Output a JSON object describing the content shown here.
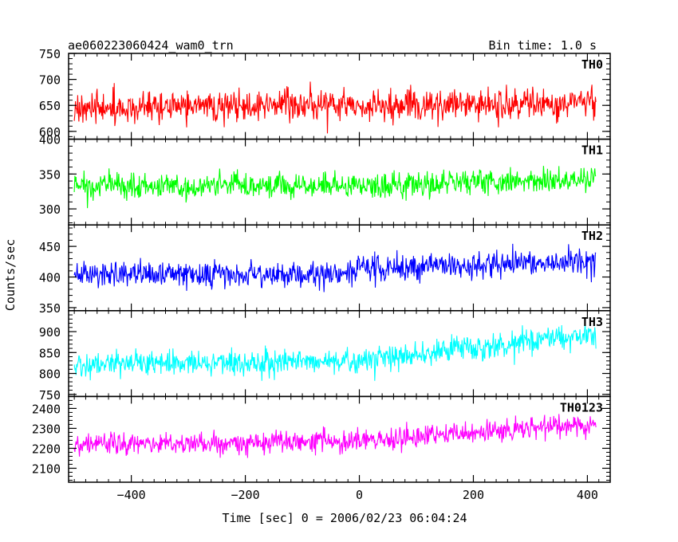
{
  "header": {
    "title": "ae060223060424_wam0_trn",
    "bin_time": "Bin time: 1.0 s"
  },
  "chart_data": {
    "type": "line",
    "xlabel": "Time [sec] 0 = 2006/02/23 06:04:24",
    "ylabel": "Counts/sec",
    "xlim": [
      -510,
      440
    ],
    "x_ticks": [
      -400,
      -200,
      0,
      200,
      400
    ],
    "x_tick_labels": [
      "−400",
      "−200",
      "0",
      "200",
      "400"
    ],
    "x_range": [
      -500,
      415
    ],
    "bin_seconds": 1.0,
    "panels": [
      {
        "name": "TH0",
        "color": "#ff0000",
        "ylim": [
          585,
          750
        ],
        "y_ticks": [
          600,
          650,
          700,
          750
        ],
        "mean": [
          [
            -500,
            645
          ],
          [
            415,
            655
          ]
        ],
        "sigma": 25
      },
      {
        "name": "TH1",
        "color": "#00ff00",
        "ylim": [
          277,
          400
        ],
        "y_ticks": [
          300,
          350,
          400
        ],
        "mean": [
          [
            -500,
            333
          ],
          [
            0,
            334
          ],
          [
            415,
            342
          ]
        ],
        "sigma": 15
      },
      {
        "name": "TH2",
        "color": "#0000ff",
        "ylim": [
          345,
          485
        ],
        "y_ticks": [
          350,
          400,
          450
        ],
        "mean": [
          [
            -500,
            404
          ],
          [
            -60,
            404
          ],
          [
            0,
            413
          ],
          [
            415,
            425
          ]
        ],
        "sigma": 18
      },
      {
        "name": "TH3",
        "color": "#00ffff",
        "ylim": [
          745,
          950
        ],
        "y_ticks": [
          750,
          800,
          850,
          900
        ],
        "mean": [
          [
            -500,
            820
          ],
          [
            0,
            830
          ],
          [
            415,
            895
          ]
        ],
        "sigma": 25
      },
      {
        "name": "TH0123",
        "color": "#ff00ff",
        "ylim": [
          2030,
          2460
        ],
        "y_ticks": [
          2100,
          2200,
          2300,
          2400
        ],
        "mean": [
          [
            -500,
            2215
          ],
          [
            0,
            2235
          ],
          [
            415,
            2320
          ]
        ],
        "sigma": 45
      }
    ]
  }
}
